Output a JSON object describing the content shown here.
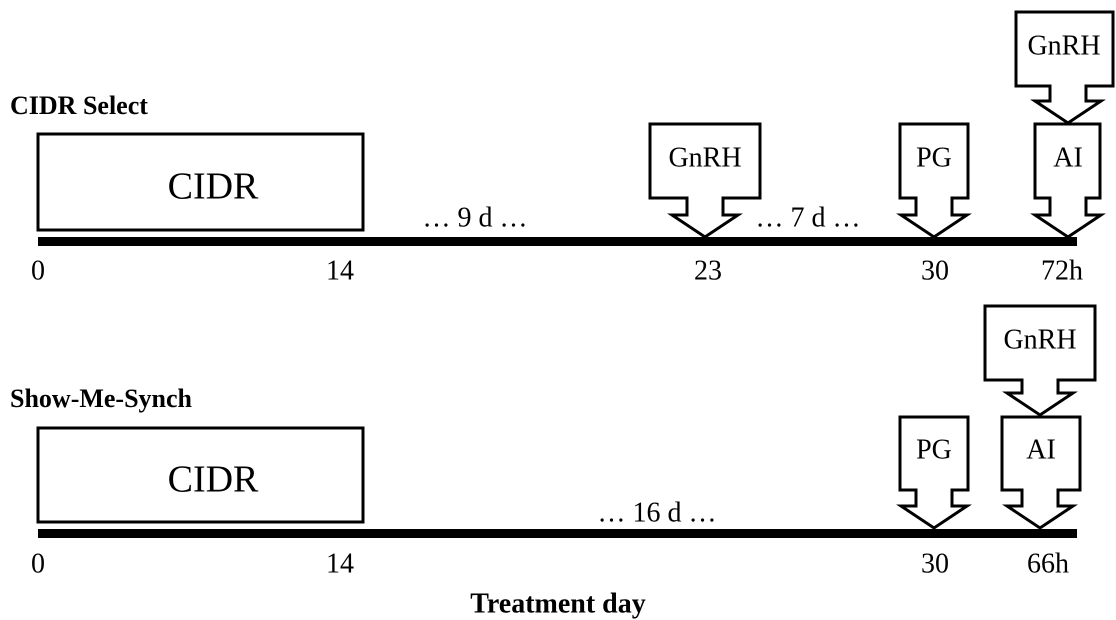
{
  "protocols": [
    {
      "title": "CIDR Select",
      "box_label": "CIDR",
      "intervals": [
        "… 9 d …",
        "… 7 d …"
      ],
      "callouts": [
        "GnRH",
        "PG",
        "AI",
        "GnRH"
      ],
      "ticks": [
        "0",
        "14",
        "23",
        "30",
        "72h"
      ]
    },
    {
      "title": "Show-Me-Synch",
      "box_label": "CIDR",
      "intervals": [
        "… 16 d …"
      ],
      "callouts": [
        "PG",
        "AI",
        "GnRH"
      ],
      "ticks": [
        "0",
        "14",
        "30",
        "66h"
      ]
    }
  ],
  "x_axis_title": "Treatment day"
}
